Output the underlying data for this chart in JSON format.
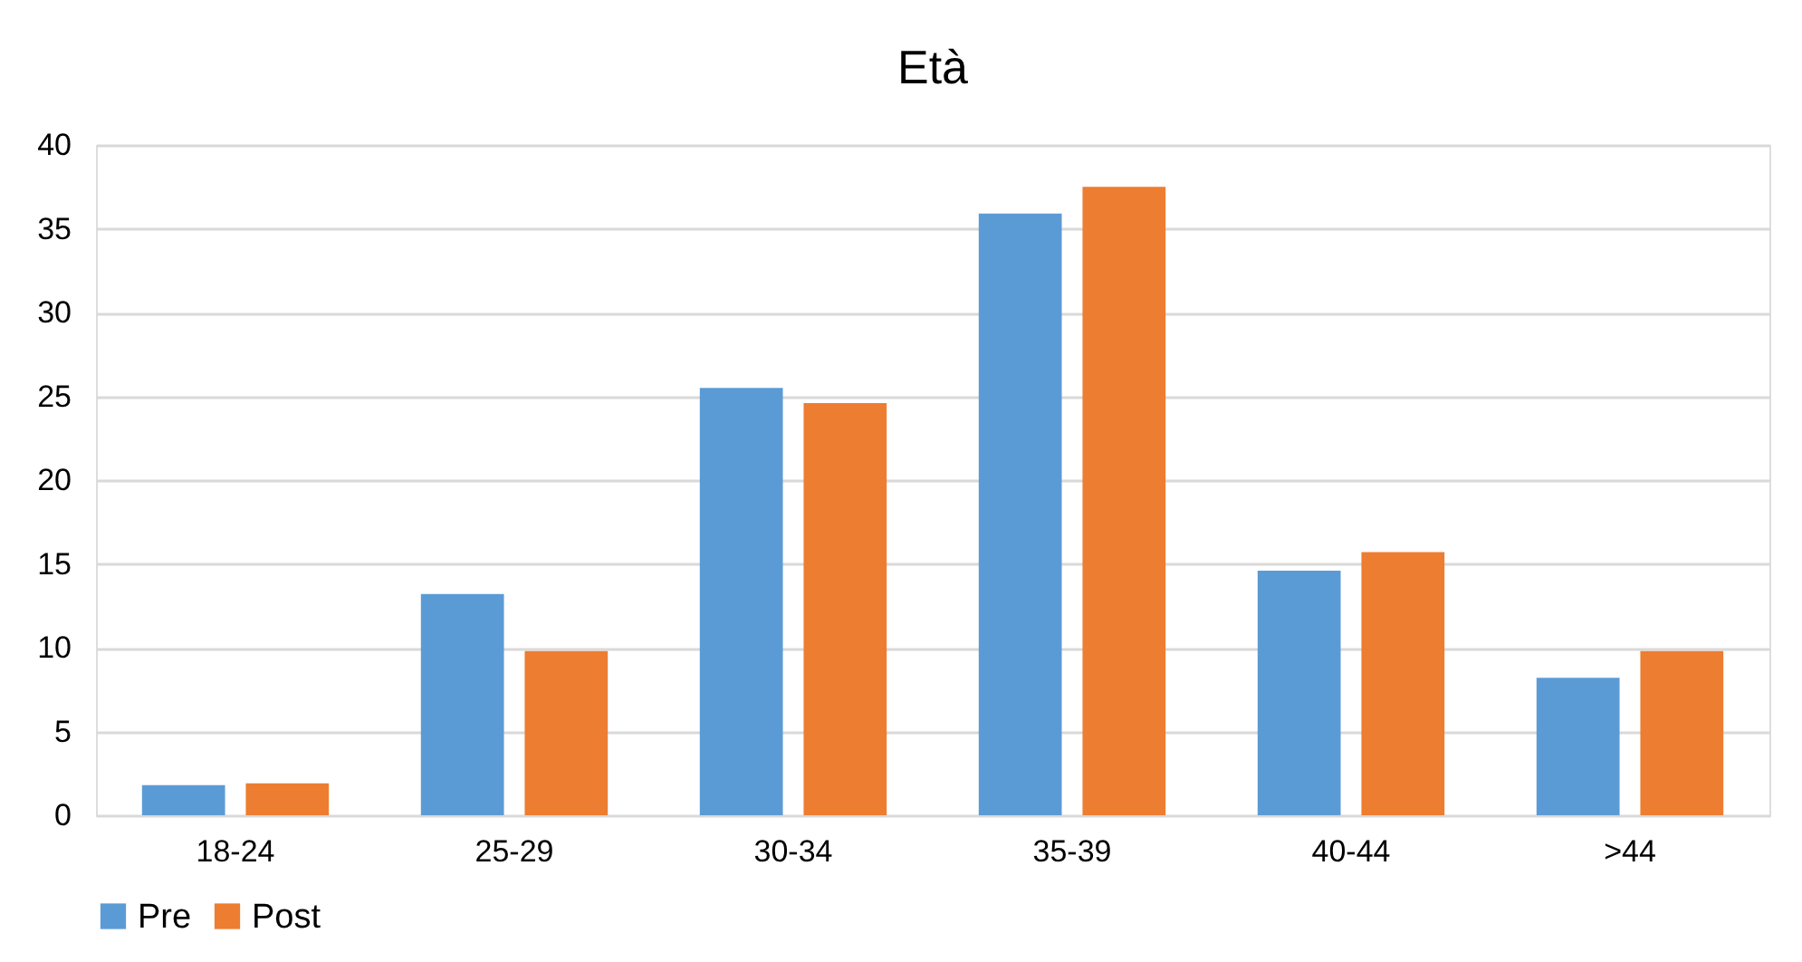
{
  "chart_data": {
    "type": "bar",
    "title": "Età",
    "categories": [
      "18-24",
      "25-29",
      "30-34",
      "35-39",
      "40-44",
      ">44"
    ],
    "series": [
      {
        "name": "Pre",
        "color": "#5b9bd5",
        "values": [
          1.8,
          13.2,
          25.5,
          35.9,
          14.6,
          8.2
        ]
      },
      {
        "name": "Post",
        "color": "#ed7d31",
        "values": [
          1.9,
          9.8,
          24.6,
          37.5,
          15.7,
          9.8
        ]
      }
    ],
    "ylim": [
      0,
      40
    ],
    "yticks": [
      0,
      5,
      10,
      15,
      20,
      25,
      30,
      35,
      40
    ],
    "grid": "y",
    "legend": "bottom"
  }
}
